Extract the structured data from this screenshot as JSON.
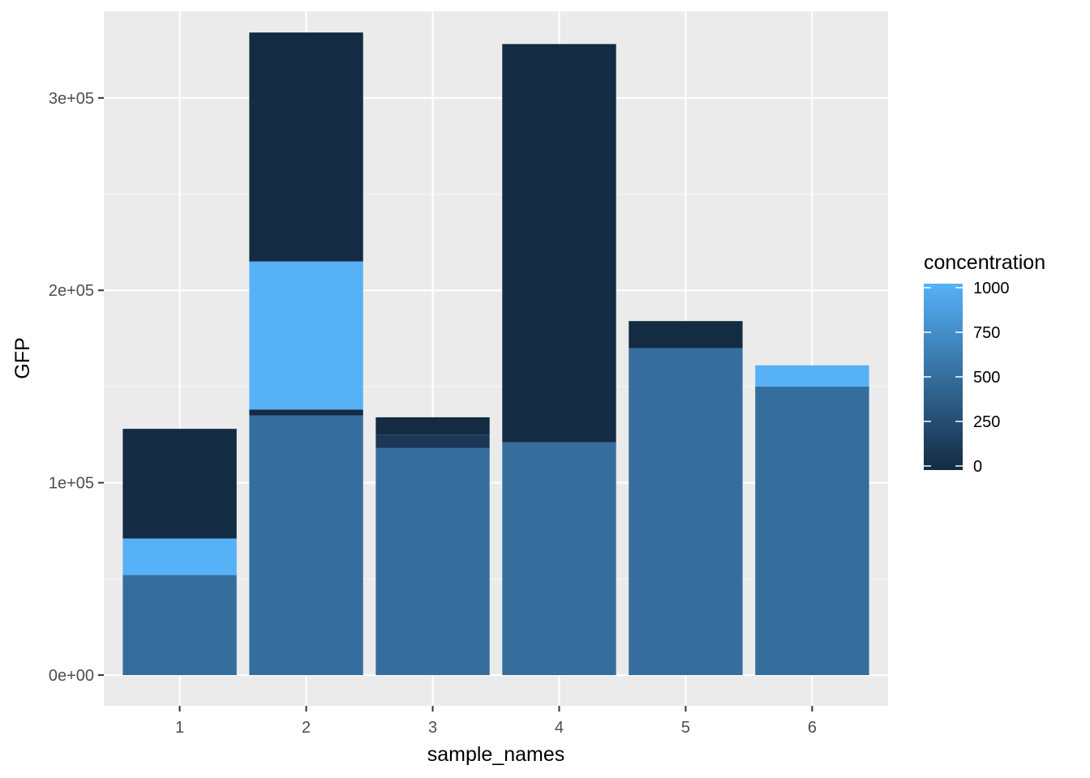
{
  "chart_data": {
    "type": "bar",
    "stacked": true,
    "xlabel": "sample_names",
    "ylabel": "GFP",
    "categories": [
      "1",
      "2",
      "3",
      "4",
      "5",
      "6"
    ],
    "ylim": [
      -16000,
      345000
    ],
    "yticks": [
      0,
      100000,
      200000,
      300000
    ],
    "ytick_labels": [
      "0e+00",
      "1e+05",
      "2e+05",
      "3e+05"
    ],
    "grid": true,
    "legend": {
      "title": "concentration",
      "position": "right",
      "type": "colorbar",
      "range": [
        0,
        1000
      ],
      "breaks": [
        0,
        250,
        500,
        750,
        1000
      ],
      "break_labels": [
        "0",
        "250",
        "500",
        "750",
        "1000"
      ],
      "low_color": "#132B43",
      "high_color": "#56B1F7"
    },
    "stacks": [
      {
        "category": "1",
        "segments": [
          {
            "value": 52000,
            "concentration": 500
          },
          {
            "value": 19000,
            "concentration": 1000
          },
          {
            "value": 57000,
            "concentration": 0
          }
        ]
      },
      {
        "category": "2",
        "segments": [
          {
            "value": 135000,
            "concentration": 500
          },
          {
            "value": 3000,
            "concentration": 0
          },
          {
            "value": 77000,
            "concentration": 1000
          },
          {
            "value": 119000,
            "concentration": 0
          }
        ]
      },
      {
        "category": "3",
        "segments": [
          {
            "value": 118000,
            "concentration": 500
          },
          {
            "value": 7000,
            "concentration": 100
          },
          {
            "value": 9000,
            "concentration": 0
          }
        ]
      },
      {
        "category": "4",
        "segments": [
          {
            "value": 121000,
            "concentration": 500
          },
          {
            "value": 207000,
            "concentration": 0
          }
        ]
      },
      {
        "category": "5",
        "segments": [
          {
            "value": 170000,
            "concentration": 500
          },
          {
            "value": 14000,
            "concentration": 0
          }
        ]
      },
      {
        "category": "6",
        "segments": [
          {
            "value": 150000,
            "concentration": 500
          },
          {
            "value": 11000,
            "concentration": 1000
          }
        ]
      }
    ],
    "colors": {
      "panel_background": "#EBEBEB",
      "grid_major": "#FFFFFF",
      "grid_minor": "#F5F5F5",
      "tick": "#333333"
    }
  }
}
